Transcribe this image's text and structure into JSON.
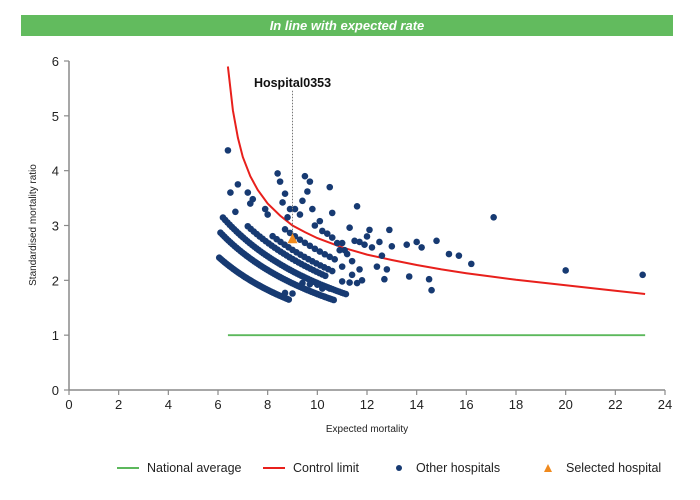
{
  "banner": {
    "text": "In line with expected rate",
    "color": "#62bb5e"
  },
  "legend": [
    {
      "label": "National average",
      "type": "line",
      "color": "#5cb85c"
    },
    {
      "label": "Control limit",
      "type": "line",
      "color": "#e8201c"
    },
    {
      "label": "Other hospitals",
      "type": "dot",
      "color": "#173a72"
    },
    {
      "label": "Selected hospital",
      "type": "triangle",
      "color": "#f08a1e"
    }
  ],
  "chart_data": {
    "type": "scatter",
    "title": "In line with expected rate",
    "xlabel": "Expected mortality",
    "ylabel": "Standardised mortality ratio",
    "xlim": [
      0,
      24
    ],
    "ylim": [
      0,
      6
    ],
    "xticks": [
      "0",
      "2",
      "4",
      "6",
      "8",
      "10",
      "12",
      "14",
      "16",
      "18",
      "20",
      "22",
      "24"
    ],
    "yticks": [
      "0",
      "1",
      "2",
      "3",
      "4",
      "5",
      "6"
    ],
    "grid": false,
    "legend_position": "bottom",
    "national_average": {
      "y": 1,
      "x_range": [
        6.4,
        23.2
      ]
    },
    "control_limit": {
      "x_range": [
        6.4,
        23.2
      ],
      "points": [
        [
          6.4,
          5.9
        ],
        [
          6.6,
          5.1
        ],
        [
          6.8,
          4.6
        ],
        [
          7.0,
          4.25
        ],
        [
          7.3,
          3.9
        ],
        [
          7.6,
          3.65
        ],
        [
          8.0,
          3.4
        ],
        [
          8.5,
          3.18
        ],
        [
          9.0,
          3.0
        ],
        [
          9.5,
          2.88
        ],
        [
          10,
          2.77
        ],
        [
          11,
          2.6
        ],
        [
          12,
          2.47
        ],
        [
          13,
          2.37
        ],
        [
          14,
          2.28
        ],
        [
          15,
          2.2
        ],
        [
          16,
          2.13
        ],
        [
          17,
          2.07
        ],
        [
          18,
          2.01
        ],
        [
          19,
          1.96
        ],
        [
          20,
          1.91
        ],
        [
          21,
          1.86
        ],
        [
          22,
          1.81
        ],
        [
          23.2,
          1.75
        ]
      ]
    },
    "selected_hospital": {
      "name": "Hospital0353",
      "x": 9.0,
      "y": 2.75
    },
    "arcs": [
      {
        "k": 14.6,
        "x_start": 6.05,
        "x_end": 8.9,
        "step": 0.07
      },
      {
        "k": 17.5,
        "x_start": 6.1,
        "x_end": 10.7,
        "step": 0.08
      },
      {
        "k": 19.5,
        "x_start": 6.2,
        "x_end": 11.2,
        "step": 0.09
      },
      {
        "k": 21.5,
        "x_start": 7.2,
        "x_end": 10.4,
        "step": 0.12
      },
      {
        "k": 23.0,
        "x_start": 8.2,
        "x_end": 10.6,
        "step": 0.16
      },
      {
        "k": 25.5,
        "x_start": 8.7,
        "x_end": 10.8,
        "step": 0.2
      }
    ],
    "other_hospitals": [
      [
        6.4,
        4.37
      ],
      [
        6.5,
        3.6
      ],
      [
        6.8,
        3.75
      ],
      [
        6.7,
        3.25
      ],
      [
        7.2,
        3.6
      ],
      [
        7.4,
        3.48
      ],
      [
        7.3,
        3.4
      ],
      [
        7.9,
        3.3
      ],
      [
        8.0,
        3.2
      ],
      [
        8.4,
        3.95
      ],
      [
        8.5,
        3.8
      ],
      [
        8.7,
        3.58
      ],
      [
        8.6,
        3.42
      ],
      [
        8.9,
        3.3
      ],
      [
        8.8,
        3.15
      ],
      [
        9.1,
        3.3
      ],
      [
        9.3,
        3.2
      ],
      [
        9.5,
        3.9
      ],
      [
        9.7,
        3.8
      ],
      [
        9.6,
        3.62
      ],
      [
        9.4,
        3.45
      ],
      [
        9.8,
        3.3
      ],
      [
        10.1,
        3.08
      ],
      [
        10.5,
        3.7
      ],
      [
        10.6,
        3.23
      ],
      [
        9.9,
        3.0
      ],
      [
        10.2,
        2.9
      ],
      [
        10.4,
        2.85
      ],
      [
        10.6,
        2.78
      ],
      [
        10.8,
        2.68
      ],
      [
        11.0,
        2.68
      ],
      [
        11.1,
        2.55
      ],
      [
        11.3,
        2.96
      ],
      [
        11.5,
        2.72
      ],
      [
        11.6,
        3.35
      ],
      [
        11.7,
        2.7
      ],
      [
        11.9,
        2.65
      ],
      [
        10.9,
        2.55
      ],
      [
        11.2,
        2.48
      ],
      [
        11.4,
        2.35
      ],
      [
        11.7,
        2.2
      ],
      [
        11.8,
        2.0
      ],
      [
        12.1,
        2.92
      ],
      [
        12.0,
        2.8
      ],
      [
        12.4,
        2.25
      ],
      [
        12.5,
        2.7
      ],
      [
        12.6,
        2.45
      ],
      [
        12.7,
        2.02
      ],
      [
        12.8,
        2.2
      ],
      [
        12.9,
        2.92
      ],
      [
        13.0,
        2.62
      ],
      [
        13.6,
        2.65
      ],
      [
        13.7,
        2.07
      ],
      [
        14.0,
        2.7
      ],
      [
        14.2,
        2.6
      ],
      [
        14.5,
        2.02
      ],
      [
        14.6,
        1.82
      ],
      [
        14.8,
        2.72
      ],
      [
        15.3,
        2.48
      ],
      [
        15.7,
        2.45
      ],
      [
        16.2,
        2.3
      ],
      [
        17.1,
        3.15
      ],
      [
        20.0,
        2.18
      ],
      [
        23.1,
        2.1
      ],
      [
        11.0,
        1.98
      ],
      [
        11.3,
        1.96
      ],
      [
        11.6,
        1.95
      ],
      [
        10.2,
        1.85
      ],
      [
        10.5,
        1.85
      ],
      [
        10.3,
        1.7
      ],
      [
        10.0,
        1.92
      ],
      [
        9.7,
        1.93
      ],
      [
        9.4,
        1.95
      ],
      [
        8.7,
        1.77
      ],
      [
        9.0,
        1.76
      ],
      [
        11.0,
        2.25
      ],
      [
        11.4,
        2.1
      ],
      [
        12.2,
        2.6
      ]
    ]
  }
}
